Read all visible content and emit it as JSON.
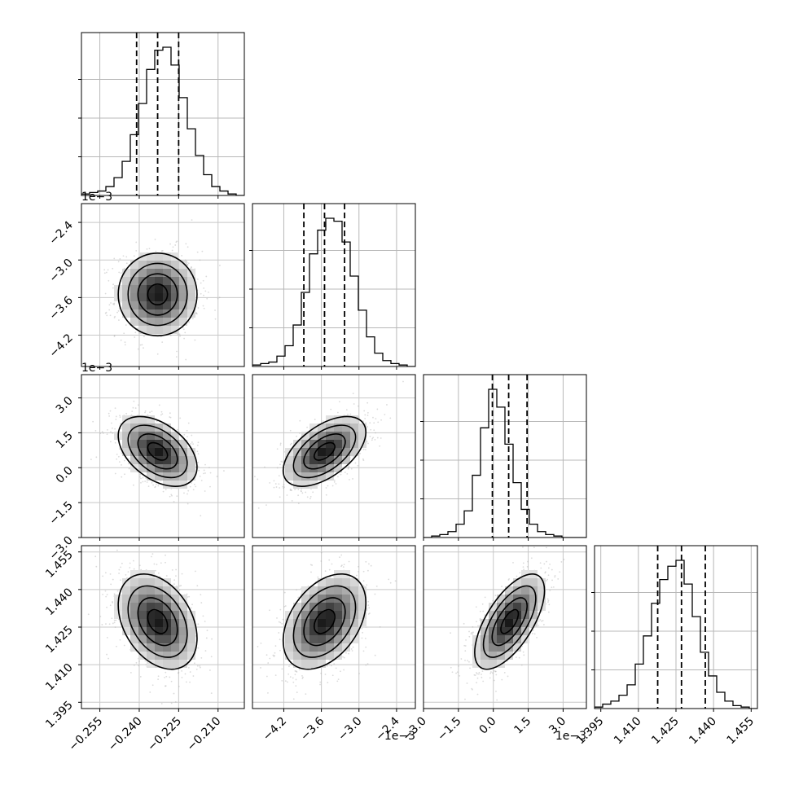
{
  "chart_data": {
    "type": "corner",
    "n_params": 4,
    "scatter_color": "#b0b0b0",
    "density_color": "#000000",
    "grid": true,
    "params": [
      {
        "range": [
          -0.262,
          -0.2
        ],
        "ticks": [
          -0.255,
          -0.24,
          -0.225,
          -0.21
        ],
        "tick_labels": [
          "−0.255",
          "−0.240",
          "−0.225",
          "−0.210"
        ],
        "offset_text": "",
        "quantiles": [
          -0.241,
          -0.233,
          -0.225
        ],
        "mean": -0.233,
        "sd": 0.0075,
        "hist_bins": 20,
        "hist": [
          1,
          2,
          3,
          6,
          12,
          23,
          41,
          62,
          85,
          98,
          100,
          88,
          66,
          45,
          27,
          14,
          6,
          3,
          1,
          0
        ]
      },
      {
        "range": [
          -4.7,
          -2.1
        ],
        "ticks": [
          -4.2,
          -3.6,
          -3.0,
          -2.4
        ],
        "tick_labels": [
          "−4.2",
          "−3.6",
          "−3.0",
          "−2.4"
        ],
        "offset_text": "1e−3",
        "quantiles": [
          -3.88,
          -3.55,
          -3.23
        ],
        "mean": -3.55,
        "sd": 0.33,
        "hist_bins": 20,
        "hist": [
          1,
          2,
          3,
          7,
          14,
          28,
          50,
          76,
          92,
          100,
          98,
          84,
          61,
          38,
          20,
          9,
          4,
          2,
          1,
          0
        ]
      },
      {
        "range": [
          -3.0,
          4.0
        ],
        "ticks": [
          -3.0,
          -1.5,
          0.0,
          1.5,
          3.0
        ],
        "tick_labels": [
          "−3.0",
          "−1.5",
          "0.0",
          "1.5",
          "3.0"
        ],
        "offset_text": "1e−3",
        "quantiles": [
          -0.04,
          0.66,
          1.45
        ],
        "mean": 0.7,
        "sd": 0.75,
        "hist_bins": 20,
        "hist": [
          0,
          1,
          2,
          4,
          9,
          18,
          42,
          74,
          100,
          88,
          63,
          37,
          19,
          9,
          4,
          2,
          1,
          0,
          0,
          0
        ]
      },
      {
        "range": [
          1.3925,
          1.4575
        ],
        "ticks": [
          1.395,
          1.41,
          1.425,
          1.44,
          1.455
        ],
        "tick_labels": [
          "1.395",
          "1.410",
          "1.425",
          "1.440",
          "1.455"
        ],
        "offset_text": "",
        "quantiles": [
          1.4177,
          1.4272,
          1.4367
        ],
        "mean": 1.4272,
        "sd": 0.0095,
        "hist_bins": 20,
        "hist": [
          1,
          3,
          5,
          9,
          16,
          30,
          49,
          71,
          87,
          96,
          100,
          84,
          62,
          38,
          22,
          11,
          5,
          2,
          1,
          0
        ]
      }
    ],
    "correlations": [
      [
        1,
        0.0,
        -0.45,
        -0.35
      ],
      [
        0.0,
        1,
        0.55,
        0.4
      ],
      [
        -0.45,
        0.55,
        1,
        0.65
      ],
      [
        -0.35,
        0.4,
        0.65,
        1
      ]
    ]
  }
}
